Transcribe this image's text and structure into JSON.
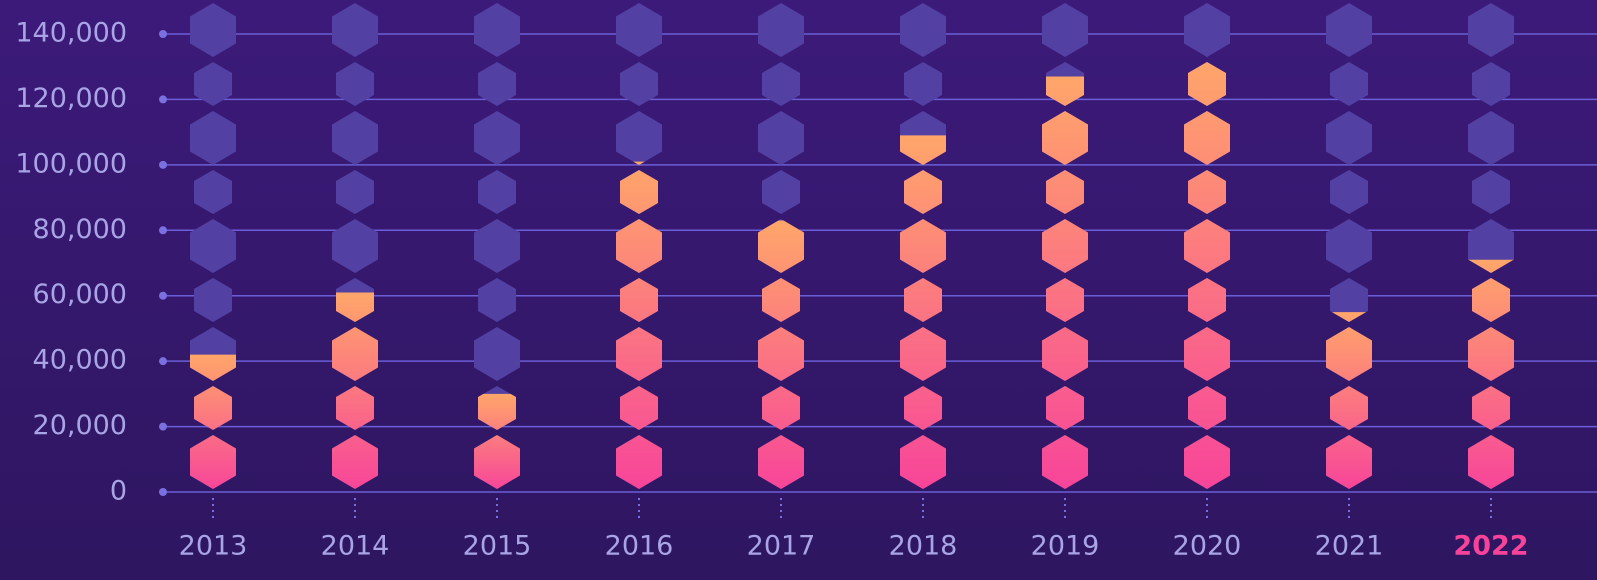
{
  "chart_data": {
    "type": "pictorial-bar",
    "categories": [
      "2013",
      "2014",
      "2015",
      "2016",
      "2017",
      "2018",
      "2019",
      "2020",
      "2021",
      "2022"
    ],
    "values": [
      42000,
      61000,
      30000,
      101000,
      83000,
      109000,
      127000,
      133000,
      55000,
      71000
    ],
    "ylim": [
      0,
      140000
    ],
    "yticks": [
      0,
      {
        "value": 20000,
        "label": "20,000"
      },
      {
        "value": 40000,
        "label": "40,000"
      },
      {
        "value": 60000,
        "label": "60,000"
      },
      {
        "value": 80000,
        "label": "80,000"
      },
      {
        "value": 100000,
        "label": "100,000"
      },
      {
        "value": 120000,
        "label": "120,000"
      },
      {
        "value": 140000,
        "label": "140,000"
      }
    ],
    "grid": true,
    "color_bottom": "#f7449a",
    "color_top": "#ffa66a",
    "empty_color": "#5340a3",
    "highlight_index": 9,
    "highlight_color": "#f7449a"
  }
}
